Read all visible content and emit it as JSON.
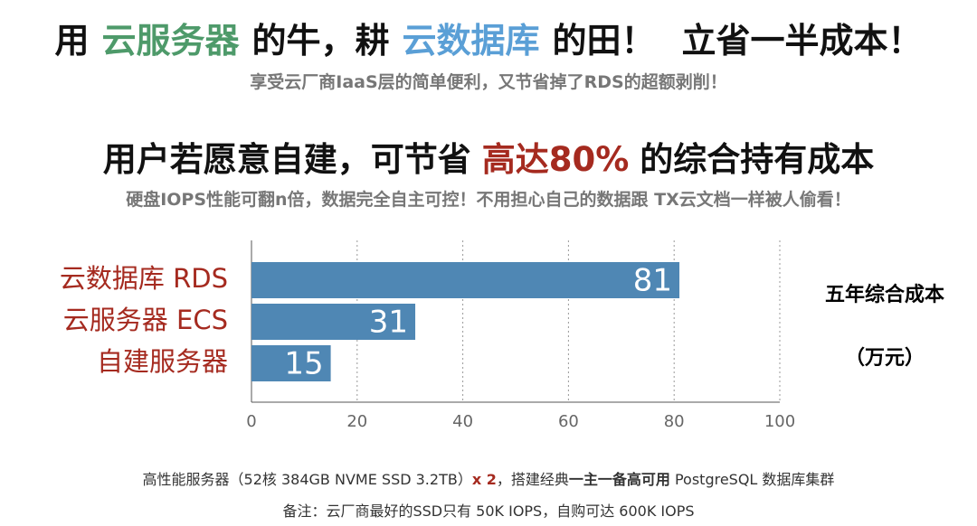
{
  "header": {
    "title": [
      "用",
      "云服务器",
      "的牛，耕",
      "云数据库",
      "的田！",
      "立省一半成本！"
    ],
    "subtitle": "享受云厂商IaaS层的简单便利，又节省掉了RDS的超额剥削！",
    "heading": [
      "用户若愿意自建，可节省",
      "高达80%",
      "的综合持有成本"
    ],
    "subheading": "硬盘IOPS性能可翻n倍，数据完全自主可控！不用担心自己的数据跟 TX云文档一样被人偷看！"
  },
  "chart_data": {
    "type": "hbar",
    "categories": [
      "云数据库 RDS",
      "云服务器 ECS",
      "自建服务器"
    ],
    "values": [
      81,
      31,
      15
    ],
    "color": "#4f87b4",
    "xlim": [
      0,
      100
    ],
    "xticks": [
      0,
      20,
      40,
      60,
      80,
      100
    ],
    "grid": true,
    "value_title": [
      "五年综合成本",
      "（万元）"
    ]
  },
  "footer": {
    "line1": [
      "高性能服务器（52核 384GB NVME SSD 3.2TB）",
      "x 2",
      "，搭建经典",
      "一主一备高可用",
      " PostgreSQL 数据库集群"
    ],
    "line2": "备注：云厂商最好的SSD只有 50K IOPS，自购可达 600K IOPS"
  }
}
